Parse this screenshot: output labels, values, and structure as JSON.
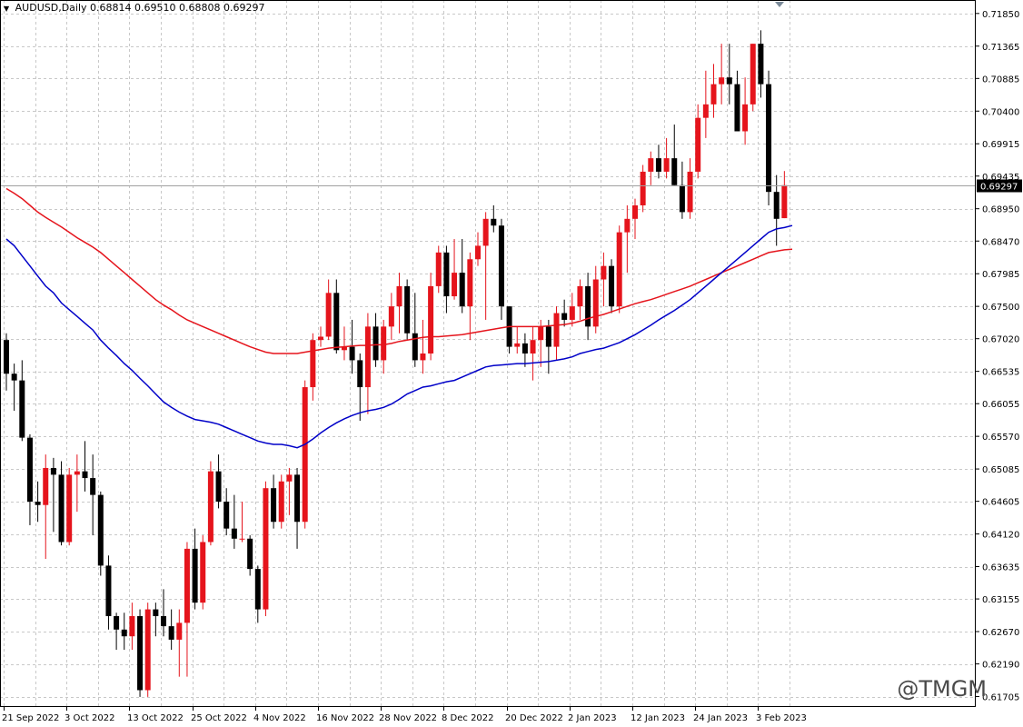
{
  "header": {
    "symbol": "AUDUSD,Daily",
    "ohlc": "0.68814 0.69510 0.68808 0.69297"
  },
  "watermark": "@TMGM",
  "chart_data": {
    "type": "candlestick",
    "symbol": "AUDUSD",
    "timeframe": "Daily",
    "current_price": 0.69297,
    "current_price_label": "0.69297",
    "ylim": [
      0.6155,
      0.7205
    ],
    "y_tick_labels": [
      "0.71850",
      "0.71365",
      "0.70885",
      "0.70400",
      "0.69915",
      "0.69435",
      "0.68950",
      "0.68470",
      "0.67985",
      "0.67500",
      "0.67020",
      "0.66535",
      "0.66055",
      "0.65570",
      "0.65085",
      "0.64605",
      "0.64120",
      "0.63635",
      "0.63155",
      "0.62670",
      "0.62190",
      "0.61705"
    ],
    "x_tick_labels": [
      {
        "index": 0,
        "label": "21 Sep 2022"
      },
      {
        "index": 8,
        "label": "3 Oct 2022"
      },
      {
        "index": 16,
        "label": "13 Oct 2022"
      },
      {
        "index": 24,
        "label": "25 Oct 2022"
      },
      {
        "index": 32,
        "label": "4 Nov 2022"
      },
      {
        "index": 40,
        "label": "16 Nov 2022"
      },
      {
        "index": 48,
        "label": "28 Nov 2022"
      },
      {
        "index": 56,
        "label": "8 Dec 2022"
      },
      {
        "index": 64,
        "label": "20 Dec 2022"
      },
      {
        "index": 72,
        "label": "2 Jan 2023"
      },
      {
        "index": 80,
        "label": "12 Jan 2023"
      },
      {
        "index": 88,
        "label": "24 Jan 2023"
      },
      {
        "index": 96,
        "label": "3 Feb 2023"
      }
    ],
    "colors": {
      "bull": "#e5141c",
      "bear": "#000000",
      "ma_fast": "#0000c8",
      "ma_slow": "#e5141c",
      "grid": "#c8c8c8"
    },
    "candles": [
      [
        0.67,
        0.671,
        0.6625,
        0.665
      ],
      [
        0.665,
        0.6665,
        0.6595,
        0.664
      ],
      [
        0.664,
        0.667,
        0.655,
        0.6555
      ],
      [
        0.6555,
        0.656,
        0.6425,
        0.646
      ],
      [
        0.646,
        0.649,
        0.643,
        0.6455
      ],
      [
        0.6455,
        0.653,
        0.6375,
        0.651
      ],
      [
        0.651,
        0.6525,
        0.6415,
        0.65
      ],
      [
        0.65,
        0.652,
        0.6395,
        0.64
      ],
      [
        0.64,
        0.651,
        0.6395,
        0.65
      ],
      [
        0.65,
        0.653,
        0.6445,
        0.6505
      ],
      [
        0.6505,
        0.655,
        0.6475,
        0.6495
      ],
      [
        0.6495,
        0.653,
        0.641,
        0.647
      ],
      [
        0.647,
        0.6475,
        0.635,
        0.6365
      ],
      [
        0.6365,
        0.638,
        0.627,
        0.629
      ],
      [
        0.629,
        0.6295,
        0.624,
        0.627
      ],
      [
        0.627,
        0.6295,
        0.624,
        0.626
      ],
      [
        0.626,
        0.631,
        0.624,
        0.629
      ],
      [
        0.629,
        0.63,
        0.617,
        0.618
      ],
      [
        0.618,
        0.631,
        0.617,
        0.63
      ],
      [
        0.63,
        0.631,
        0.626,
        0.629
      ],
      [
        0.629,
        0.633,
        0.626,
        0.6275
      ],
      [
        0.6275,
        0.63,
        0.624,
        0.6255
      ],
      [
        0.6255,
        0.63,
        0.62,
        0.628
      ],
      [
        0.628,
        0.64,
        0.62,
        0.639
      ],
      [
        0.639,
        0.642,
        0.63,
        0.631
      ],
      [
        0.631,
        0.641,
        0.63,
        0.64
      ],
      [
        0.64,
        0.652,
        0.6395,
        0.6505
      ],
      [
        0.6505,
        0.653,
        0.645,
        0.646
      ],
      [
        0.646,
        0.648,
        0.641,
        0.642
      ],
      [
        0.642,
        0.647,
        0.639,
        0.6405
      ],
      [
        0.6405,
        0.646,
        0.64,
        0.6405
      ],
      [
        0.6405,
        0.641,
        0.635,
        0.636
      ],
      [
        0.636,
        0.6365,
        0.628,
        0.63
      ],
      [
        0.63,
        0.649,
        0.629,
        0.648
      ],
      [
        0.648,
        0.65,
        0.642,
        0.643
      ],
      [
        0.643,
        0.65,
        0.642,
        0.649
      ],
      [
        0.649,
        0.651,
        0.644,
        0.65
      ],
      [
        0.65,
        0.651,
        0.639,
        0.643
      ],
      [
        0.643,
        0.664,
        0.642,
        0.663
      ],
      [
        0.663,
        0.671,
        0.661,
        0.67
      ],
      [
        0.67,
        0.672,
        0.669,
        0.6705
      ],
      [
        0.6705,
        0.679,
        0.67,
        0.677
      ],
      [
        0.677,
        0.679,
        0.668,
        0.6685
      ],
      [
        0.6685,
        0.672,
        0.667,
        0.669
      ],
      [
        0.669,
        0.673,
        0.665,
        0.667
      ],
      [
        0.667,
        0.668,
        0.658,
        0.663
      ],
      [
        0.663,
        0.674,
        0.659,
        0.672
      ],
      [
        0.672,
        0.674,
        0.666,
        0.667
      ],
      [
        0.667,
        0.673,
        0.665,
        0.672
      ],
      [
        0.672,
        0.677,
        0.67,
        0.675
      ],
      [
        0.675,
        0.68,
        0.671,
        0.678
      ],
      [
        0.678,
        0.679,
        0.67,
        0.671
      ],
      [
        0.671,
        0.677,
        0.666,
        0.667
      ],
      [
        0.667,
        0.673,
        0.665,
        0.668
      ],
      [
        0.668,
        0.68,
        0.667,
        0.678
      ],
      [
        0.678,
        0.684,
        0.677,
        0.683
      ],
      [
        0.683,
        0.684,
        0.674,
        0.6765
      ],
      [
        0.6765,
        0.685,
        0.676,
        0.68
      ],
      [
        0.68,
        0.685,
        0.674,
        0.675
      ],
      [
        0.675,
        0.683,
        0.67,
        0.682
      ],
      [
        0.682,
        0.686,
        0.681,
        0.684
      ],
      [
        0.684,
        0.689,
        0.673,
        0.688
      ],
      [
        0.688,
        0.69,
        0.686,
        0.687
      ],
      [
        0.687,
        0.688,
        0.673,
        0.675
      ],
      [
        0.675,
        0.675,
        0.668,
        0.669
      ],
      [
        0.669,
        0.672,
        0.668,
        0.6695
      ],
      [
        0.6695,
        0.671,
        0.666,
        0.668
      ],
      [
        0.668,
        0.672,
        0.664,
        0.67
      ],
      [
        0.67,
        0.673,
        0.666,
        0.672
      ],
      [
        0.672,
        0.673,
        0.665,
        0.669
      ],
      [
        0.669,
        0.675,
        0.667,
        0.674
      ],
      [
        0.674,
        0.676,
        0.672,
        0.673
      ],
      [
        0.673,
        0.677,
        0.672,
        0.675
      ],
      [
        0.675,
        0.679,
        0.673,
        0.678
      ],
      [
        0.678,
        0.68,
        0.67,
        0.672
      ],
      [
        0.672,
        0.681,
        0.671,
        0.679
      ],
      [
        0.679,
        0.683,
        0.675,
        0.681
      ],
      [
        0.681,
        0.682,
        0.674,
        0.675
      ],
      [
        0.675,
        0.687,
        0.674,
        0.686
      ],
      [
        0.686,
        0.69,
        0.68,
        0.688
      ],
      [
        0.688,
        0.691,
        0.685,
        0.69
      ],
      [
        0.69,
        0.696,
        0.689,
        0.695
      ],
      [
        0.695,
        0.698,
        0.693,
        0.697
      ],
      [
        0.697,
        0.699,
        0.694,
        0.695
      ],
      [
        0.695,
        0.7,
        0.694,
        0.697
      ],
      [
        0.697,
        0.702,
        0.693,
        0.693
      ],
      [
        0.693,
        0.6965,
        0.688,
        0.689
      ],
      [
        0.689,
        0.697,
        0.688,
        0.695
      ],
      [
        0.695,
        0.705,
        0.694,
        0.703
      ],
      [
        0.703,
        0.71,
        0.7,
        0.705
      ],
      [
        0.705,
        0.711,
        0.703,
        0.708
      ],
      [
        0.708,
        0.714,
        0.705,
        0.709
      ],
      [
        0.709,
        0.714,
        0.705,
        0.708
      ],
      [
        0.708,
        0.71,
        0.701,
        0.701
      ],
      [
        0.701,
        0.709,
        0.699,
        0.705
      ],
      [
        0.705,
        0.714,
        0.704,
        0.714
      ],
      [
        0.714,
        0.716,
        0.706,
        0.708
      ],
      [
        0.708,
        0.71,
        0.69,
        0.692
      ],
      [
        0.692,
        0.6945,
        0.684,
        0.688
      ],
      [
        0.6881,
        0.6951,
        0.6881,
        0.693
      ]
    ],
    "ma_fast": [
      0.685,
      0.684,
      0.6825,
      0.681,
      0.6795,
      0.678,
      0.677,
      0.6755,
      0.6745,
      0.6735,
      0.6725,
      0.6715,
      0.67,
      0.6688,
      0.6677,
      0.6665,
      0.6655,
      0.6643,
      0.6632,
      0.662,
      0.6608,
      0.66,
      0.6593,
      0.6587,
      0.6582,
      0.658,
      0.6578,
      0.6575,
      0.657,
      0.6565,
      0.656,
      0.6555,
      0.655,
      0.6547,
      0.6545,
      0.6545,
      0.6543,
      0.654,
      0.6545,
      0.6553,
      0.6562,
      0.657,
      0.6577,
      0.6583,
      0.6588,
      0.6592,
      0.6595,
      0.6597,
      0.66,
      0.6605,
      0.6612,
      0.662,
      0.6625,
      0.663,
      0.6632,
      0.6635,
      0.6638,
      0.664,
      0.6645,
      0.665,
      0.6655,
      0.666,
      0.6662,
      0.6663,
      0.6664,
      0.6665,
      0.6665,
      0.6666,
      0.6667,
      0.6668,
      0.667,
      0.6672,
      0.6675,
      0.668,
      0.6683,
      0.6686,
      0.6688,
      0.6692,
      0.6696,
      0.6702,
      0.6708,
      0.6715,
      0.6722,
      0.673,
      0.6737,
      0.6744,
      0.6752,
      0.676,
      0.677,
      0.678,
      0.679,
      0.68,
      0.681,
      0.682,
      0.683,
      0.684,
      0.685,
      0.686,
      0.6865,
      0.6867,
      0.687
    ],
    "ma_slow": [
      0.6925,
      0.6918,
      0.691,
      0.69,
      0.689,
      0.6882,
      0.6875,
      0.6868,
      0.686,
      0.6852,
      0.6845,
      0.6838,
      0.683,
      0.682,
      0.681,
      0.68,
      0.679,
      0.678,
      0.677,
      0.676,
      0.6752,
      0.6745,
      0.6737,
      0.673,
      0.6725,
      0.672,
      0.6715,
      0.671,
      0.6705,
      0.67,
      0.6695,
      0.669,
      0.6686,
      0.6682,
      0.668,
      0.668,
      0.668,
      0.668,
      0.6682,
      0.6684,
      0.6686,
      0.6688,
      0.6689,
      0.669,
      0.6691,
      0.6692,
      0.6692,
      0.6693,
      0.6693,
      0.6695,
      0.6698,
      0.67,
      0.6702,
      0.6704,
      0.6705,
      0.6705,
      0.6706,
      0.6707,
      0.6708,
      0.671,
      0.6712,
      0.6714,
      0.6716,
      0.6718,
      0.672,
      0.672,
      0.672,
      0.672,
      0.672,
      0.6721,
      0.6722,
      0.6723,
      0.6725,
      0.6728,
      0.6732,
      0.6735,
      0.6738,
      0.6742,
      0.6746,
      0.675,
      0.6754,
      0.6757,
      0.676,
      0.6764,
      0.6768,
      0.6772,
      0.6776,
      0.678,
      0.6785,
      0.679,
      0.6795,
      0.68,
      0.6805,
      0.681,
      0.6815,
      0.682,
      0.6825,
      0.683,
      0.6832,
      0.6834,
      0.6835
    ]
  }
}
